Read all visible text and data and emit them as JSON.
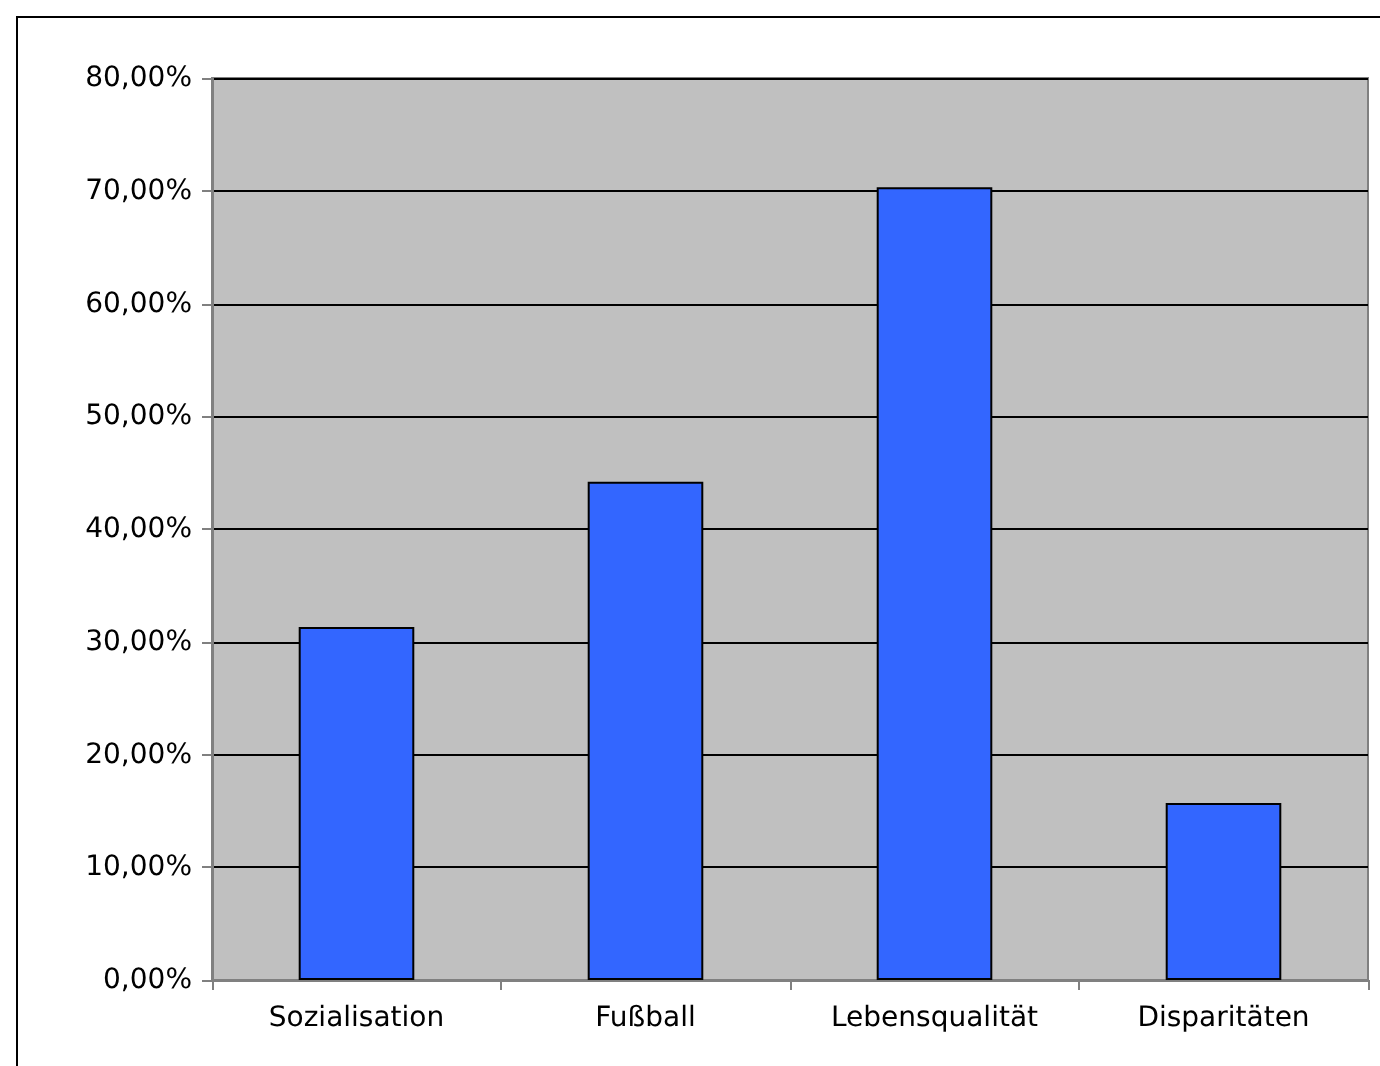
{
  "chart_data": {
    "type": "bar",
    "categories": [
      "Sozialisation",
      "Fußball",
      "Lebensqualität",
      "Disparitäten"
    ],
    "values": [
      31.3,
      44.2,
      70.3,
      15.7
    ],
    "color": "#3366ff",
    "ylim": [
      0,
      80
    ],
    "yticks": [
      {
        "value": 0,
        "label": "0,00%"
      },
      {
        "value": 10,
        "label": "10,00%"
      },
      {
        "value": 20,
        "label": "20,00%"
      },
      {
        "value": 30,
        "label": "30,00%"
      },
      {
        "value": 40,
        "label": "40,00%"
      },
      {
        "value": 50,
        "label": "50,00%"
      },
      {
        "value": 60,
        "label": "60,00%"
      },
      {
        "value": 70,
        "label": "70,00%"
      },
      {
        "value": 80,
        "label": "80,00%"
      }
    ],
    "grid": "y"
  }
}
